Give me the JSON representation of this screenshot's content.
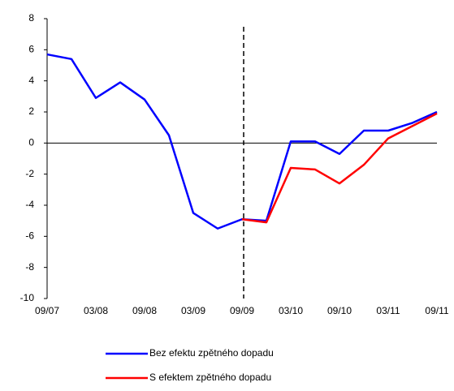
{
  "chart_data": {
    "type": "line",
    "categories": [
      "09/07",
      null,
      "03/08",
      null,
      "09/08",
      null,
      "03/09",
      null,
      "09/09",
      null,
      "03/10",
      null,
      "09/10",
      null,
      "03/11",
      null,
      "09/11"
    ],
    "series": [
      {
        "name": "Bez efektu zpětného dopadu",
        "color": "#0000ff",
        "values": [
          5.7,
          5.4,
          2.9,
          3.9,
          2.8,
          0.5,
          -4.5,
          -5.5,
          -4.9,
          -5.0,
          0.1,
          0.1,
          -0.7,
          0.8,
          0.8,
          1.3,
          2.0
        ]
      },
      {
        "name": "S efektem zpětného dopadu",
        "color": "#ff0000",
        "values": [
          null,
          null,
          null,
          null,
          null,
          null,
          null,
          null,
          -4.9,
          -5.1,
          -1.6,
          -1.7,
          -2.6,
          -1.4,
          0.3,
          1.1,
          1.9
        ]
      }
    ],
    "ylim": [
      -10,
      8
    ],
    "yticks": [
      -10,
      -8,
      -6,
      -4,
      -2,
      0,
      2,
      4,
      6,
      8
    ]
  }
}
